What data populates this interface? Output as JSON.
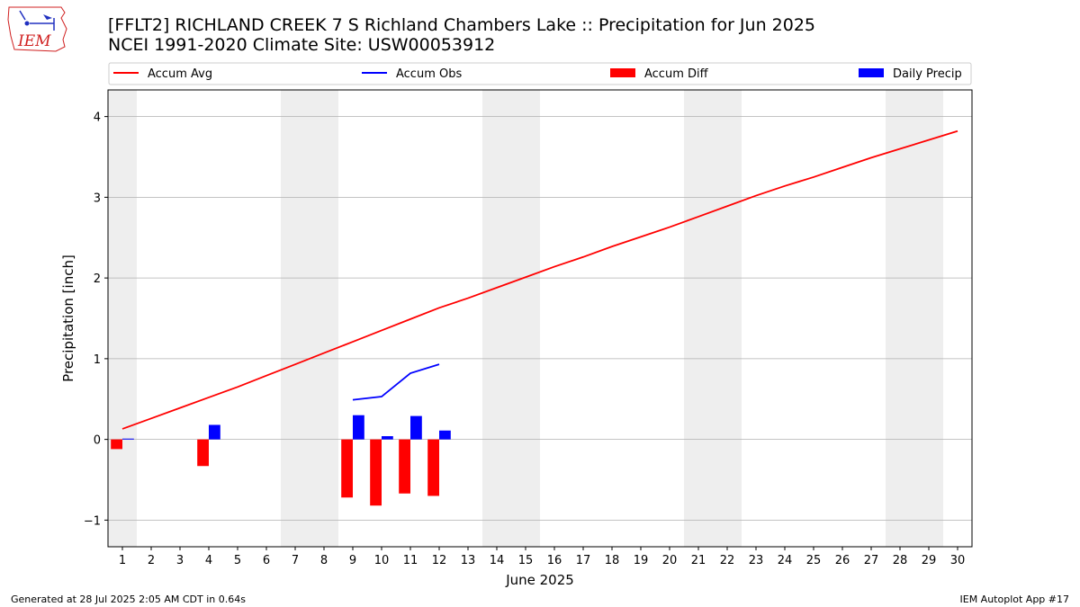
{
  "header": {
    "title_line1": "[FFLT2] RICHLAND CREEK 7 S Richland Chambers Lake :: Precipitation for Jun 2025",
    "title_line2": "NCEI 1991-2020 Climate Site: USW00053912",
    "logo_text": "IEM"
  },
  "footer": {
    "generated": "Generated at 28 Jul 2025 2:05 AM CDT in 0.64s",
    "app": "IEM Autoplot App #17"
  },
  "colors": {
    "accum_avg": "#ff0000",
    "accum_obs": "#0000ff",
    "accum_diff": "#ff0000",
    "daily_precip": "#0000ff",
    "weekend_band": "#eeeeee",
    "grid": "#b0b0b0"
  },
  "chart_data": {
    "type": "bar",
    "xlabel": "June 2025",
    "ylabel": "Precipitation [inch]",
    "xlim": [
      0.5,
      30.5
    ],
    "ylim": [
      -1.33,
      4.33
    ],
    "yticks": [
      -1,
      0,
      1,
      2,
      3,
      4
    ],
    "ytick_labels": [
      "−1",
      "0",
      "1",
      "2",
      "3",
      "4"
    ],
    "x": [
      1,
      2,
      3,
      4,
      5,
      6,
      7,
      8,
      9,
      10,
      11,
      12,
      13,
      14,
      15,
      16,
      17,
      18,
      19,
      20,
      21,
      22,
      23,
      24,
      25,
      26,
      27,
      28,
      29,
      30
    ],
    "weekend_days": [
      1,
      7,
      8,
      14,
      15,
      21,
      22,
      28,
      29
    ],
    "grid": "y",
    "legend_position": "top",
    "legend": [
      "Accum Avg",
      "Accum Obs",
      "Accum Diff",
      "Daily Precip"
    ],
    "series": [
      {
        "name": "Accum Avg",
        "kind": "line",
        "x": [
          1,
          2,
          3,
          4,
          5,
          6,
          7,
          8,
          9,
          10,
          11,
          12,
          13,
          14,
          15,
          16,
          17,
          18,
          19,
          20,
          21,
          22,
          23,
          24,
          25,
          26,
          27,
          28,
          29,
          30
        ],
        "values": [
          0.13,
          0.26,
          0.39,
          0.52,
          0.65,
          0.79,
          0.93,
          1.07,
          1.21,
          1.35,
          1.49,
          1.63,
          1.75,
          1.88,
          2.01,
          2.14,
          2.26,
          2.39,
          2.51,
          2.63,
          2.76,
          2.89,
          3.02,
          3.14,
          3.25,
          3.37,
          3.49,
          3.6,
          3.71,
          3.82
        ]
      },
      {
        "name": "Accum Obs",
        "kind": "line",
        "x": [
          9,
          10,
          11,
          12
        ],
        "values": [
          0.49,
          0.53,
          0.82,
          0.93
        ]
      },
      {
        "name": "Accum Diff",
        "kind": "bar",
        "x": [
          1,
          4,
          9,
          10,
          11,
          12
        ],
        "values": [
          -0.12,
          -0.33,
          -0.72,
          -0.82,
          -0.67,
          -0.7
        ]
      },
      {
        "name": "Daily Precip",
        "kind": "bar",
        "x": [
          1,
          4,
          9,
          10,
          11,
          12
        ],
        "values": [
          0.01,
          0.18,
          0.3,
          0.04,
          0.29,
          0.11
        ]
      }
    ]
  }
}
